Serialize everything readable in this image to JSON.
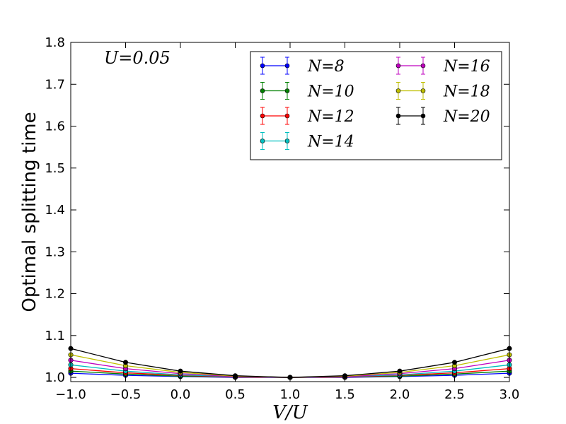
{
  "chart_data": {
    "type": "line",
    "annotation": "U=0.05",
    "xlabel": "V/U",
    "ylabel": "Optimal splitting time",
    "xlim": [
      -1.0,
      3.0
    ],
    "ylim": [
      0.99,
      1.8
    ],
    "xticks": [
      "−1.0",
      "−0.5",
      "0.0",
      "0.5",
      "1.0",
      "1.5",
      "2.0",
      "2.5",
      "3.0"
    ],
    "yticks": [
      "1.0",
      "1.1",
      "1.2",
      "1.3",
      "1.4",
      "1.5",
      "1.6",
      "1.7",
      "1.8"
    ],
    "grid": false,
    "legend_position": "top-right",
    "x": [
      -1.0,
      -0.5,
      0.0,
      0.5,
      1.0,
      1.5,
      2.0,
      2.5,
      3.0
    ],
    "series": [
      {
        "name": "N=8",
        "color": "#0000ff",
        "values": [
          1.01,
          1.005,
          1.002,
          1.0,
          1.0,
          1.0,
          1.002,
          1.005,
          1.01
        ]
      },
      {
        "name": "N=10",
        "color": "#008000",
        "values": [
          1.015,
          1.008,
          1.003,
          1.001,
          1.0,
          1.001,
          1.003,
          1.008,
          1.015
        ]
      },
      {
        "name": "N=12",
        "color": "#ff0000",
        "values": [
          1.021,
          1.011,
          1.005,
          1.001,
          1.0,
          1.001,
          1.005,
          1.011,
          1.021
        ]
      },
      {
        "name": "N=14",
        "color": "#00bfbf",
        "values": [
          1.03,
          1.015,
          1.006,
          1.002,
          1.0,
          1.002,
          1.006,
          1.015,
          1.03
        ]
      },
      {
        "name": "N=16",
        "color": "#bf00bf",
        "values": [
          1.041,
          1.021,
          1.009,
          1.002,
          1.0,
          1.002,
          1.009,
          1.021,
          1.041
        ]
      },
      {
        "name": "N=18",
        "color": "#bfbf00",
        "values": [
          1.054,
          1.028,
          1.012,
          1.003,
          1.0,
          1.003,
          1.012,
          1.028,
          1.054
        ]
      },
      {
        "name": "N=20",
        "color": "#000000",
        "values": [
          1.069,
          1.036,
          1.015,
          1.004,
          1.0,
          1.004,
          1.015,
          1.036,
          1.069
        ]
      }
    ]
  }
}
